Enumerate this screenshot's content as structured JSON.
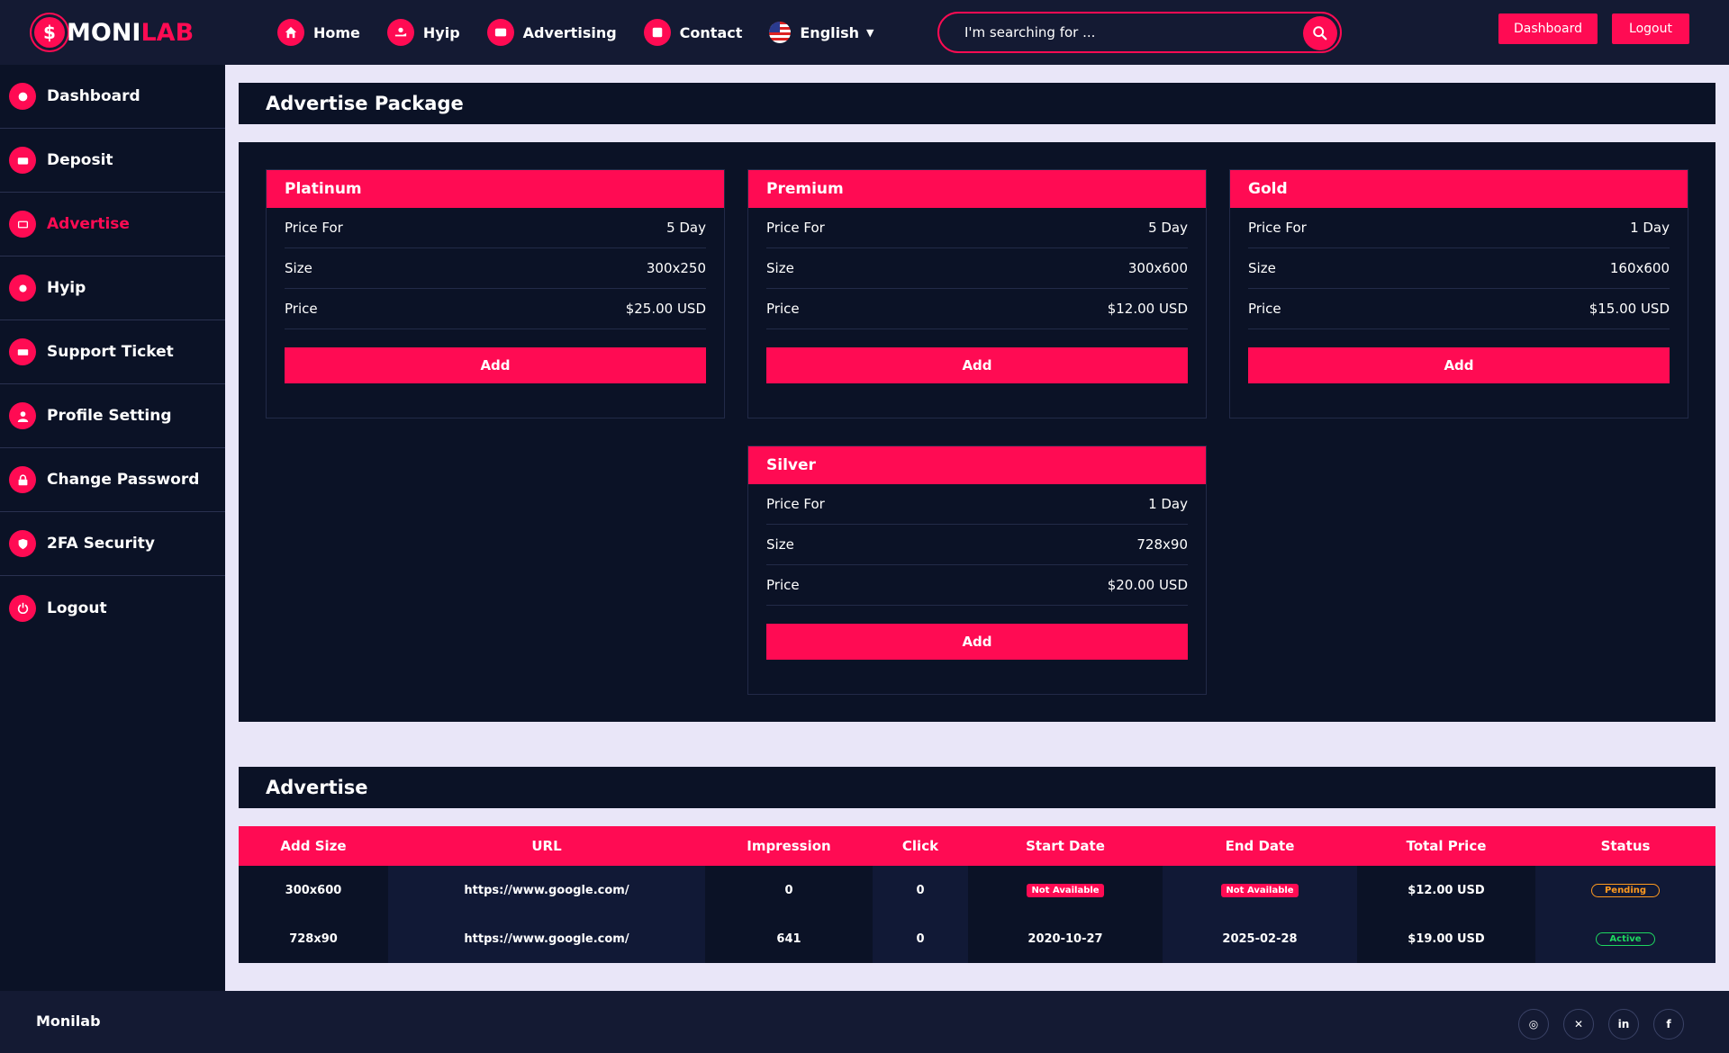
{
  "brand": {
    "logo_prefix": "$",
    "logo_white": "MONI",
    "logo_red": "LAB",
    "accent": "#ff0b53"
  },
  "nav": {
    "home": "Home",
    "hyip": "Hyip",
    "advertising": "Advertising",
    "contact": "Contact",
    "language": "English"
  },
  "search": {
    "placeholder": "I'm searching for ..."
  },
  "top_buttons": {
    "dashboard": "Dashboard",
    "logout": "Logout"
  },
  "sidebar": {
    "items": [
      {
        "label": "Dashboard",
        "icon": "speedometer-icon"
      },
      {
        "label": "Deposit",
        "icon": "wallet-icon"
      },
      {
        "label": "Advertise",
        "icon": "ad-icon"
      },
      {
        "label": "Hyip",
        "icon": "hyip-icon"
      },
      {
        "label": "Support Ticket",
        "icon": "ticket-icon"
      },
      {
        "label": "Profile Setting",
        "icon": "user-icon"
      },
      {
        "label": "Change Password",
        "icon": "lock-icon"
      },
      {
        "label": "2FA Security",
        "icon": "shield-icon"
      },
      {
        "label": "Logout",
        "icon": "power-icon"
      }
    ]
  },
  "packages_panel": {
    "title": "Advertise Package"
  },
  "packages": [
    {
      "name": "Platinum",
      "price_for_label": "Price For",
      "price_for": "5 Day",
      "size_label": "Size",
      "size": "300x250",
      "price_label": "Price",
      "price": "$25.00 USD",
      "button": "Add"
    },
    {
      "name": "Premium",
      "price_for_label": "Price For",
      "price_for": "5 Day",
      "size_label": "Size",
      "size": "300x600",
      "price_label": "Price",
      "price": "$12.00 USD",
      "button": "Add"
    },
    {
      "name": "Gold",
      "price_for_label": "Price For",
      "price_for": "1 Day",
      "size_label": "Size",
      "size": "160x600",
      "price_label": "Price",
      "price": "$15.00 USD",
      "button": "Add"
    },
    {
      "name": "Silver",
      "price_for_label": "Price For",
      "price_for": "1 Day",
      "size_label": "Size",
      "size": "728x90",
      "price_label": "Price",
      "price": "$20.00 USD",
      "button": "Add"
    }
  ],
  "advertise_panel": {
    "title": "Advertise"
  },
  "table": {
    "headers": [
      "Add Size",
      "URL",
      "Impression",
      "Click",
      "Start Date",
      "End Date",
      "Total Price",
      "Status"
    ],
    "rows": [
      {
        "size": "300x600",
        "url": "https://www.google.com/",
        "impression": "0",
        "click": "0",
        "start": "Not Available",
        "end": "Not Available",
        "total": "$12.00 USD",
        "status": "Pending"
      },
      {
        "size": "728x90",
        "url": "https://www.google.com/",
        "impression": "641",
        "click": "0",
        "start": "2020-10-27",
        "end": "2025-02-28",
        "total": "$19.00 USD",
        "status": "Active"
      }
    ]
  },
  "footer": {
    "brand": "Monilab",
    "socials": [
      {
        "icon": "instagram-icon",
        "glyph": "◎"
      },
      {
        "icon": "x-icon",
        "glyph": "✕"
      },
      {
        "icon": "linkedin-icon",
        "glyph": "in"
      },
      {
        "icon": "facebook-icon",
        "glyph": "f"
      }
    ]
  }
}
